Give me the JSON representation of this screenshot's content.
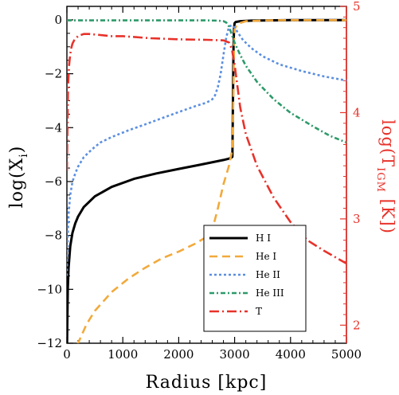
{
  "chart_data": {
    "type": "line",
    "xlabel": "Radius [kpc]",
    "ylabel_main": "log(X",
    "ylabel_sub": "i",
    "ylabel_close": ")",
    "y2label_main": "log(T",
    "y2label_sub": "IGM",
    "y2label_close": " [K])",
    "xlim": [
      0,
      5000
    ],
    "ylim": [
      -12,
      0.5
    ],
    "y2lim": [
      1.83,
      5.0
    ],
    "x_ticks": [
      "0",
      "1000",
      "2000",
      "3000",
      "4000",
      "5000"
    ],
    "x_tick_values": [
      0,
      1000,
      2000,
      3000,
      4000,
      5000
    ],
    "y_ticks": [
      "0",
      "−2",
      "−4",
      "−6",
      "−8",
      "−10",
      "−12"
    ],
    "y_tick_values": [
      0,
      -2,
      -4,
      -6,
      -8,
      -10,
      -12
    ],
    "y2_ticks": [
      "2",
      "3",
      "4",
      "5"
    ],
    "y2_tick_values": [
      2,
      3,
      4,
      5
    ],
    "colors": {
      "HI": "#000000",
      "HeI": "#f2a93b",
      "HeII": "#5b8fe0",
      "HeIII": "#2e9a6a",
      "T": "#e8322a",
      "right_axis": "#e8322a"
    },
    "legend_position": "bottom-right",
    "series": [
      {
        "name": "H I",
        "key": "HI",
        "axis": "left",
        "dash": "solid",
        "x": [
          0,
          5,
          15,
          30,
          60,
          100,
          150,
          200,
          300,
          500,
          800,
          1200,
          1600,
          2000,
          2400,
          2800,
          2900,
          2950,
          2960,
          2970,
          2980,
          2990,
          3000,
          3020,
          3100,
          3300,
          3600,
          4000,
          4500,
          5000
        ],
        "y": [
          -12.5,
          -11.5,
          -10.0,
          -9.2,
          -8.4,
          -7.9,
          -7.55,
          -7.3,
          -6.95,
          -6.55,
          -6.2,
          -5.9,
          -5.7,
          -5.53,
          -5.37,
          -5.2,
          -5.15,
          -5.1,
          -5.08,
          -3.0,
          -1.0,
          -0.3,
          -0.12,
          -0.08,
          -0.05,
          -0.03,
          -0.02,
          -0.01,
          -0.01,
          -0.01
        ]
      },
      {
        "name": "He I",
        "key": "HeI",
        "axis": "left",
        "dash": "dash",
        "x": [
          100,
          200,
          350,
          500,
          800,
          1100,
          1400,
          1700,
          2000,
          2300,
          2500,
          2600,
          2700,
          2800,
          2900,
          2960,
          2980,
          2990,
          3000,
          3050,
          3200,
          3600,
          4000,
          5000
        ],
        "y": [
          -12.5,
          -12.0,
          -11.3,
          -10.8,
          -10.1,
          -9.6,
          -9.2,
          -8.85,
          -8.6,
          -8.3,
          -8.05,
          -7.8,
          -7.0,
          -6.1,
          -5.4,
          -4.8,
          -2.5,
          -0.8,
          -0.35,
          -0.15,
          -0.05,
          -0.02,
          -0.01,
          -0.01
        ]
      },
      {
        "name": "He II",
        "key": "HeII",
        "axis": "left",
        "dash": "dot",
        "x": [
          0,
          10,
          30,
          60,
          100,
          150,
          200,
          300,
          450,
          600,
          800,
          1100,
          1400,
          1700,
          2000,
          2300,
          2500,
          2600,
          2650,
          2700,
          2750,
          2800,
          2850,
          2900,
          2950,
          3000,
          3050,
          3150,
          3300,
          3500,
          3800,
          4200,
          4600,
          5000
        ],
        "y": [
          -9.5,
          -8.3,
          -7.2,
          -6.5,
          -6.0,
          -5.7,
          -5.45,
          -5.1,
          -4.8,
          -4.55,
          -4.35,
          -4.1,
          -3.88,
          -3.65,
          -3.42,
          -3.2,
          -3.07,
          -2.95,
          -2.8,
          -2.5,
          -2.0,
          -1.3,
          -0.65,
          -0.25,
          -0.2,
          -0.28,
          -0.45,
          -0.75,
          -1.05,
          -1.35,
          -1.65,
          -1.9,
          -2.1,
          -2.25
        ]
      },
      {
        "name": "He III",
        "key": "HeIII",
        "axis": "left",
        "dash": "dashdot",
        "x": [
          0,
          500,
          1000,
          1500,
          2000,
          2500,
          2700,
          2800,
          2850,
          2900,
          2950,
          3000,
          3100,
          3200,
          3400,
          3700,
          4000,
          4400,
          4700,
          5000
        ],
        "y": [
          -0.02,
          -0.02,
          -0.02,
          -0.02,
          -0.02,
          -0.02,
          -0.03,
          -0.05,
          -0.1,
          -0.25,
          -0.55,
          -0.85,
          -1.3,
          -1.7,
          -2.3,
          -2.95,
          -3.45,
          -3.95,
          -4.3,
          -4.55
        ]
      },
      {
        "name": "T",
        "key": "T",
        "axis": "right",
        "dash": "longdashdot",
        "x": [
          0,
          20,
          40,
          60,
          80,
          100,
          130,
          160,
          200,
          250,
          300,
          400,
          600,
          800,
          1000,
          1500,
          2000,
          2500,
          2800,
          2900,
          2950,
          3000,
          3050,
          3100,
          3200,
          3400,
          3700,
          4000,
          4300,
          4600,
          5000
        ],
        "y": [
          3.45,
          4.25,
          4.45,
          4.55,
          4.61,
          4.65,
          4.68,
          4.7,
          4.72,
          4.73,
          4.74,
          4.74,
          4.73,
          4.72,
          4.72,
          4.7,
          4.69,
          4.685,
          4.68,
          4.66,
          4.6,
          4.45,
          4.25,
          4.05,
          3.8,
          3.5,
          3.2,
          2.97,
          2.8,
          2.7,
          2.58
        ]
      }
    ]
  }
}
